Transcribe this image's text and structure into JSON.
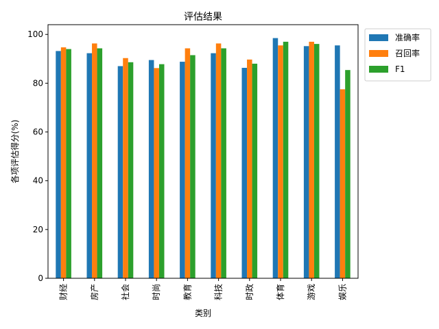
{
  "chart_data": {
    "type": "bar",
    "title": "评估结果",
    "xlabel": "类别",
    "ylabel": "各项评估得分(%)",
    "categories": [
      "财经",
      "房产",
      "社会",
      "时尚",
      "教育",
      "科技",
      "时政",
      "体育",
      "游戏",
      "娱乐"
    ],
    "series": [
      {
        "name": "准确率",
        "color": "#1f77b4",
        "values": [
          93.2,
          92.3,
          87.0,
          89.5,
          88.8,
          92.3,
          86.3,
          98.5,
          95.2,
          95.5
        ]
      },
      {
        "name": "召回率",
        "color": "#ff7f0e",
        "values": [
          94.7,
          96.3,
          90.3,
          86.2,
          94.3,
          96.3,
          89.7,
          95.5,
          97.0,
          77.5
        ]
      },
      {
        "name": "F1",
        "color": "#2ca02c",
        "values": [
          94.0,
          94.3,
          88.6,
          87.8,
          91.5,
          94.3,
          88.0,
          97.0,
          96.1,
          85.4
        ]
      }
    ],
    "ylim": [
      0,
      104
    ],
    "yticks": [
      0,
      20,
      40,
      60,
      80,
      100
    ],
    "grid": false,
    "legend_position": "upper-right-outside"
  }
}
